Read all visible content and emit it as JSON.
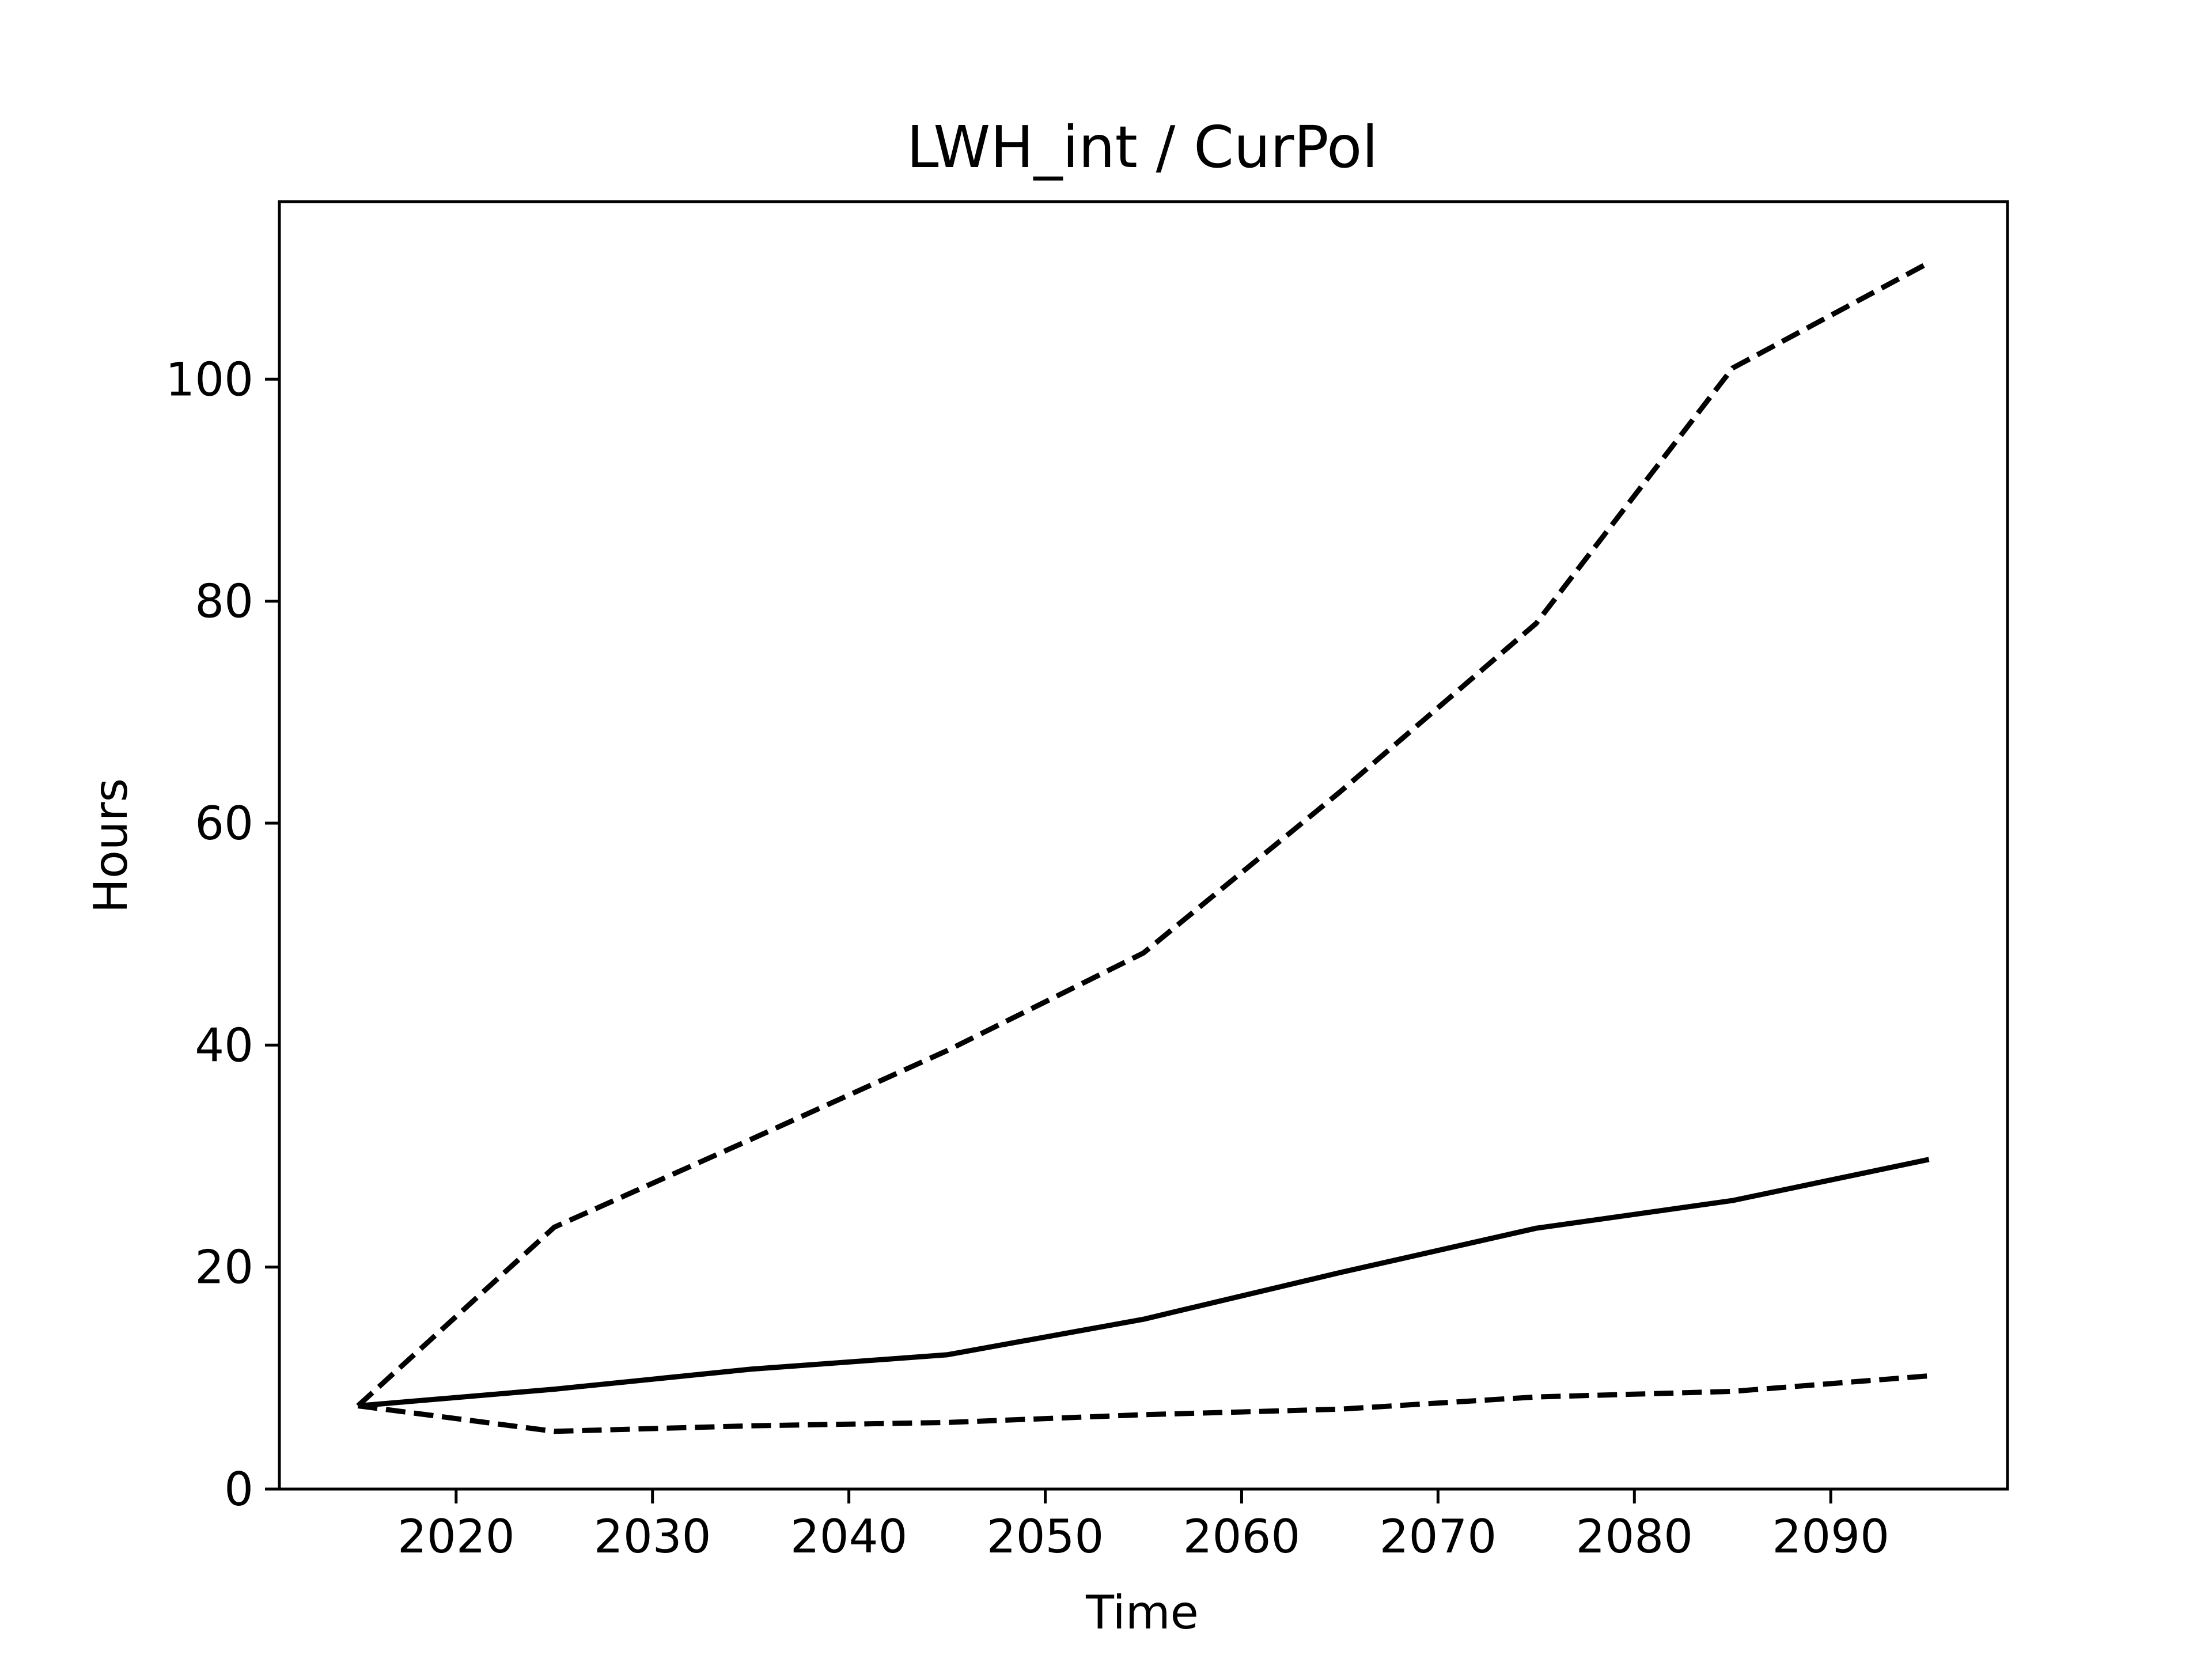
{
  "chart_data": {
    "type": "line",
    "title": "LWH_int / CurPol",
    "xlabel": "Time",
    "ylabel": "Hours",
    "xlim": [
      2011,
      2099
    ],
    "ylim": [
      0,
      116
    ],
    "grid": false,
    "x_ticks": [
      2020,
      2030,
      2040,
      2050,
      2060,
      2070,
      2080,
      2090
    ],
    "y_ticks": [
      0,
      20,
      40,
      60,
      80,
      100
    ],
    "x": [
      2015,
      2025,
      2035,
      2045,
      2055,
      2065,
      2075,
      2085,
      2095
    ],
    "series": [
      {
        "style": "solid",
        "color": "#000000",
        "values": [
          7.5,
          9.0,
          10.8,
          12.1,
          15.3,
          19.5,
          23.5,
          26.0,
          29.7
        ]
      },
      {
        "style": "dashed",
        "color": "#000000",
        "values": [
          7.5,
          23.6,
          31.5,
          39.5,
          48.3,
          62.8,
          78.0,
          101.0,
          110.5
        ]
      },
      {
        "style": "dashed",
        "color": "#000000",
        "values": [
          7.5,
          5.2,
          5.7,
          6.0,
          6.7,
          7.2,
          8.3,
          8.8,
          10.2
        ]
      }
    ]
  }
}
